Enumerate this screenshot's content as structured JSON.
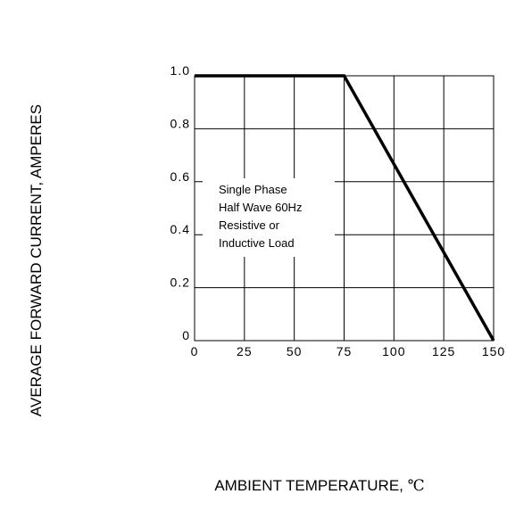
{
  "chart_data": {
    "type": "line",
    "title": "",
    "xlabel": "AMBIENT TEMPERATURE,",
    "xlabel_unit": "℃",
    "ylabel": "AVERAGE FORWARD CURRENT, AMPERES",
    "xlim": [
      0,
      150
    ],
    "ylim": [
      0,
      1.0
    ],
    "x_ticks": [
      "0",
      "25",
      "50",
      "75",
      "100",
      "125",
      "150"
    ],
    "y_ticks": [
      "0",
      "0.2",
      "0.4",
      "0.6",
      "0.8",
      "1.0"
    ],
    "grid": true,
    "series": [
      {
        "x": [
          0,
          75,
          150
        ],
        "y": [
          1.0,
          1.0,
          0
        ]
      }
    ],
    "annotation": [
      "Single Phase",
      "Half Wave 60Hz",
      "Resistive or",
      "Inductive Load"
    ]
  }
}
